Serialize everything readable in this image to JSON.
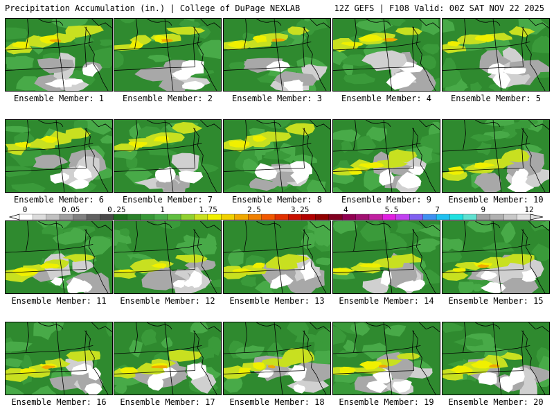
{
  "header": {
    "title": "Precipitation Accumulation (in.) | College of DuPage NEXLAB",
    "run_info": "12Z GEFS | F108 Valid: 00Z SAT NOV 22 2025"
  },
  "colorbar": {
    "labels": [
      "0",
      "0.05",
      "0.25",
      "1",
      "1.75",
      "2.5",
      "3.25",
      "4",
      "5.5",
      "7",
      "9",
      "12"
    ],
    "colors": [
      "#ffffff",
      "#dcdcdc",
      "#c0c0c0",
      "#a0a0a0",
      "#808080",
      "#606060",
      "#4a4a4a",
      "#1e6e1e",
      "#2a802a",
      "#369636",
      "#48aa48",
      "#60be40",
      "#90d030",
      "#c8e020",
      "#f0f000",
      "#f0d000",
      "#f0a800",
      "#f08000",
      "#f05800",
      "#e03000",
      "#c81000",
      "#b00000",
      "#900000",
      "#800020",
      "#900050",
      "#a01070",
      "#c020a0",
      "#e020e0",
      "#c040f0",
      "#8060f0",
      "#4090f0",
      "#20c0f0",
      "#20e0e0",
      "#60e0d0",
      "#a0a0a0",
      "#b0b0b0",
      "#c8c8c8",
      "#e0e0e0"
    ]
  },
  "panels": [
    {
      "label": "Ensemble Member: 1"
    },
    {
      "label": "Ensemble Member: 2"
    },
    {
      "label": "Ensemble Member: 3"
    },
    {
      "label": "Ensemble Member: 4"
    },
    {
      "label": "Ensemble Member: 5"
    },
    {
      "label": "Ensemble Member: 6"
    },
    {
      "label": "Ensemble Member: 7"
    },
    {
      "label": "Ensemble Member: 8"
    },
    {
      "label": "Ensemble Member: 9"
    },
    {
      "label": "Ensemble Member: 10"
    },
    {
      "label": "Ensemble Member: 11"
    },
    {
      "label": "Ensemble Member: 12"
    },
    {
      "label": "Ensemble Member: 13"
    },
    {
      "label": "Ensemble Member: 14"
    },
    {
      "label": "Ensemble Member: 15"
    },
    {
      "label": "Ensemble Member: 16"
    },
    {
      "label": "Ensemble Member: 17"
    },
    {
      "label": "Ensemble Member: 18"
    },
    {
      "label": "Ensemble Member: 19"
    },
    {
      "label": "Ensemble Member: 20"
    }
  ]
}
